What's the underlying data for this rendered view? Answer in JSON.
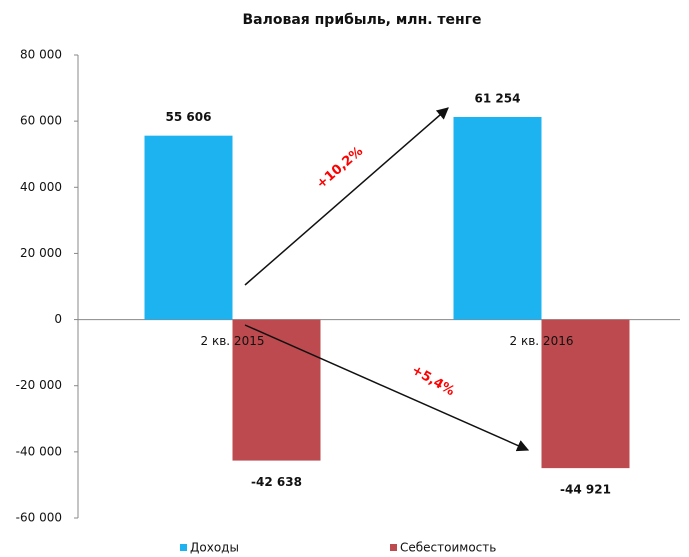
{
  "chart_data": {
    "type": "bar",
    "title": "Валовая прибыль, млн. тенге",
    "categories": [
      "2 кв. 2015",
      "2 кв. 2016"
    ],
    "series": [
      {
        "name": "Доходы",
        "color": "#1cb3f0",
        "values": [
          55606,
          61254
        ],
        "value_labels": [
          "55 606",
          "61 254"
        ]
      },
      {
        "name": "Себестоимость",
        "color": "#bd4a4e",
        "values": [
          -42638,
          -44921
        ],
        "value_labels": [
          "-42 638",
          "-44 921"
        ]
      }
    ],
    "ylim": [
      -60000,
      80000
    ],
    "yticks": [
      {
        "value": -60000,
        "label": "-60 000"
      },
      {
        "value": -40000,
        "label": "-40 000"
      },
      {
        "value": -20000,
        "label": "-20 000"
      },
      0,
      {
        "value": 20000,
        "label": "20 000"
      },
      {
        "value": 40000,
        "label": "40 000"
      },
      {
        "value": 60000,
        "label": "60 000"
      },
      {
        "value": 80000,
        "label": "80 000"
      }
    ],
    "annotations": [
      {
        "text": "+10,2%",
        "color": "#ff0000"
      },
      {
        "text": "+5,4%",
        "color": "#ff0000"
      }
    ],
    "legend": "bottom"
  }
}
